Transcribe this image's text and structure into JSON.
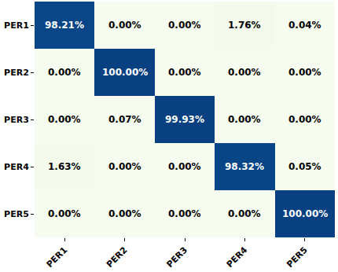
{
  "chart_data": {
    "type": "heatmap",
    "x": [
      "PER1",
      "PER2",
      "PER3",
      "PER4",
      "PER5"
    ],
    "y": [
      "PER1",
      "PER2",
      "PER3",
      "PER4",
      "PER5"
    ],
    "cells": [
      [
        98.21,
        0.0,
        0.0,
        1.76,
        0.04
      ],
      [
        0.0,
        100.0,
        0.0,
        0.0,
        0.0
      ],
      [
        0.0,
        0.07,
        99.93,
        0.0,
        0.0
      ],
      [
        1.63,
        0.0,
        0.0,
        98.32,
        0.05
      ],
      [
        0.0,
        0.0,
        0.0,
        0.0,
        100.0
      ]
    ],
    "value_labels": [
      [
        "98.21%",
        "0.00%",
        "0.00%",
        "1.76%",
        "0.04%"
      ],
      [
        "0.00%",
        "100.00%",
        "0.00%",
        "0.00%",
        "0.00%"
      ],
      [
        "0.00%",
        "0.07%",
        "99.93%",
        "0.00%",
        "0.00%"
      ],
      [
        "1.63%",
        "0.00%",
        "0.00%",
        "98.32%",
        "0.05%"
      ],
      [
        "0.00%",
        "0.00%",
        "0.00%",
        "0.00%",
        "100.00%"
      ]
    ],
    "data_labels": true,
    "color": "GnBu"
  }
}
